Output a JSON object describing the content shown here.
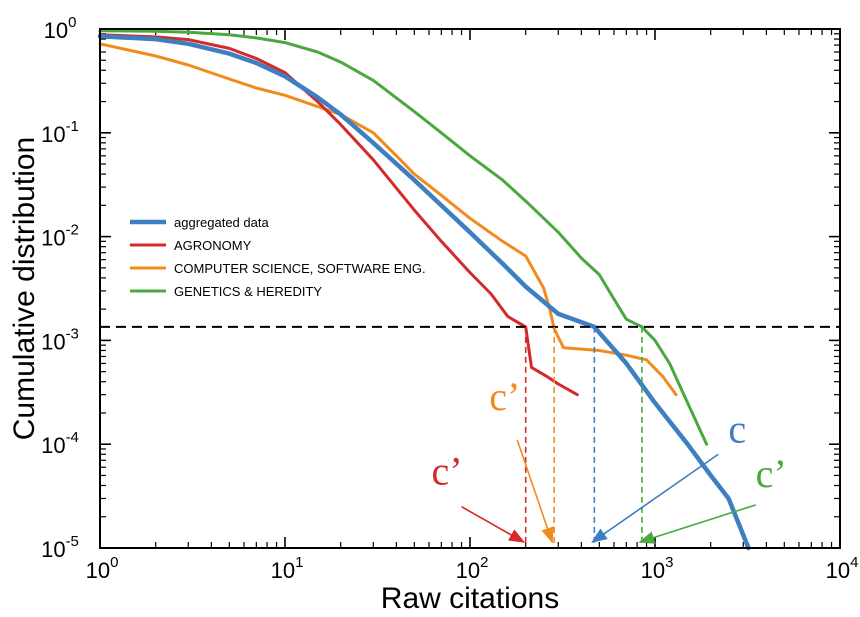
{
  "chart_data": {
    "type": "line",
    "xscale": "log",
    "yscale": "log",
    "xlim": [
      1,
      10000
    ],
    "ylim": [
      1e-05,
      1
    ],
    "xlabel": "Raw citations",
    "ylabel": "Cumulative distribution",
    "x_ticks": [
      {
        "base": "10",
        "exp": "0",
        "value": 1
      },
      {
        "base": "10",
        "exp": "1",
        "value": 10
      },
      {
        "base": "10",
        "exp": "2",
        "value": 100
      },
      {
        "base": "10",
        "exp": "3",
        "value": 1000
      },
      {
        "base": "10",
        "exp": "4",
        "value": 10000
      }
    ],
    "y_ticks": [
      {
        "base": "10",
        "exp": "-5",
        "value": 1e-05
      },
      {
        "base": "10",
        "exp": "-4",
        "value": 0.0001
      },
      {
        "base": "10",
        "exp": "-3",
        "value": 0.001
      },
      {
        "base": "10",
        "exp": "-2",
        "value": 0.01
      },
      {
        "base": "10",
        "exp": "-1",
        "value": 0.1
      },
      {
        "base": "10",
        "exp": "0",
        "value": 1
      }
    ],
    "grid": false,
    "legend_position": "middle-left",
    "series": [
      {
        "name": "aggregated data",
        "color": "#3d7fc1",
        "width": 4.5,
        "points": [
          [
            1,
            0.85
          ],
          [
            2,
            0.8
          ],
          [
            3,
            0.72
          ],
          [
            5,
            0.58
          ],
          [
            7,
            0.47
          ],
          [
            10,
            0.35
          ],
          [
            15,
            0.22
          ],
          [
            20,
            0.15
          ],
          [
            30,
            0.08
          ],
          [
            50,
            0.035
          ],
          [
            70,
            0.02
          ],
          [
            100,
            0.011
          ],
          [
            150,
            0.0055
          ],
          [
            200,
            0.0033
          ],
          [
            300,
            0.0018
          ],
          [
            470,
            0.00135
          ],
          [
            700,
            0.0006
          ],
          [
            1000,
            0.00025
          ],
          [
            1500,
            0.0001
          ],
          [
            2000,
            5e-05
          ],
          [
            2500,
            3e-05
          ],
          [
            3200,
            1e-05
          ]
        ]
      },
      {
        "name": "AGRONOMY",
        "color": "#d42a2a",
        "width": 3,
        "points": [
          [
            1,
            0.88
          ],
          [
            2,
            0.84
          ],
          [
            3,
            0.79
          ],
          [
            5,
            0.65
          ],
          [
            7,
            0.52
          ],
          [
            10,
            0.38
          ],
          [
            15,
            0.2
          ],
          [
            20,
            0.12
          ],
          [
            30,
            0.055
          ],
          [
            50,
            0.018
          ],
          [
            70,
            0.009
          ],
          [
            100,
            0.0045
          ],
          [
            130,
            0.0028
          ],
          [
            160,
            0.0017
          ],
          [
            200,
            0.00135
          ],
          [
            215,
            0.00055
          ],
          [
            260,
            0.00045
          ],
          [
            300,
            0.00038
          ],
          [
            380,
            0.0003
          ]
        ]
      },
      {
        "name": "COMPUTER SCIENCE, SOFTWARE ENG.",
        "color": "#f28b1e",
        "width": 3,
        "points": [
          [
            1,
            0.72
          ],
          [
            2,
            0.55
          ],
          [
            3,
            0.45
          ],
          [
            5,
            0.33
          ],
          [
            7,
            0.27
          ],
          [
            10,
            0.23
          ],
          [
            20,
            0.15
          ],
          [
            30,
            0.1
          ],
          [
            40,
            0.06
          ],
          [
            50,
            0.04
          ],
          [
            70,
            0.025
          ],
          [
            100,
            0.015
          ],
          [
            150,
            0.009
          ],
          [
            200,
            0.0065
          ],
          [
            250,
            0.0032
          ],
          [
            270,
            0.002
          ],
          [
            285,
            0.0013
          ],
          [
            320,
            0.00085
          ],
          [
            500,
            0.0008
          ],
          [
            700,
            0.00072
          ],
          [
            900,
            0.00065
          ],
          [
            1100,
            0.00045
          ],
          [
            1300,
            0.0003
          ]
        ]
      },
      {
        "name": "GENETICS & HEREDITY",
        "color": "#4aa83f",
        "width": 3,
        "points": [
          [
            1,
            0.96
          ],
          [
            2,
            0.95
          ],
          [
            3,
            0.93
          ],
          [
            5,
            0.88
          ],
          [
            7,
            0.82
          ],
          [
            10,
            0.74
          ],
          [
            15,
            0.6
          ],
          [
            20,
            0.48
          ],
          [
            30,
            0.32
          ],
          [
            50,
            0.16
          ],
          [
            70,
            0.1
          ],
          [
            100,
            0.06
          ],
          [
            150,
            0.035
          ],
          [
            200,
            0.022
          ],
          [
            300,
            0.011
          ],
          [
            400,
            0.0062
          ],
          [
            500,
            0.0043
          ],
          [
            600,
            0.0025
          ],
          [
            700,
            0.0016
          ],
          [
            850,
            0.00135
          ],
          [
            1000,
            0.001
          ],
          [
            1200,
            0.0006
          ],
          [
            1500,
            0.00025
          ],
          [
            1900,
            0.0001
          ]
        ]
      }
    ],
    "threshold_y": 0.00135,
    "annotations": [
      {
        "label": "c’",
        "color": "#d42a2a",
        "target_x": 200,
        "from_x": 90,
        "from_y": 2.5e-05
      },
      {
        "label": "c’",
        "color": "#f28b1e",
        "target_x": 285,
        "from_x": 180,
        "from_y": 0.00011
      },
      {
        "label": "c",
        "color": "#3d7fc1",
        "target_x": 470,
        "from_x": 2200,
        "from_y": 8e-05
      },
      {
        "label": "c’",
        "color": "#4aa83f",
        "target_x": 850,
        "from_x": 3500,
        "from_y": 2.6e-05
      }
    ]
  }
}
